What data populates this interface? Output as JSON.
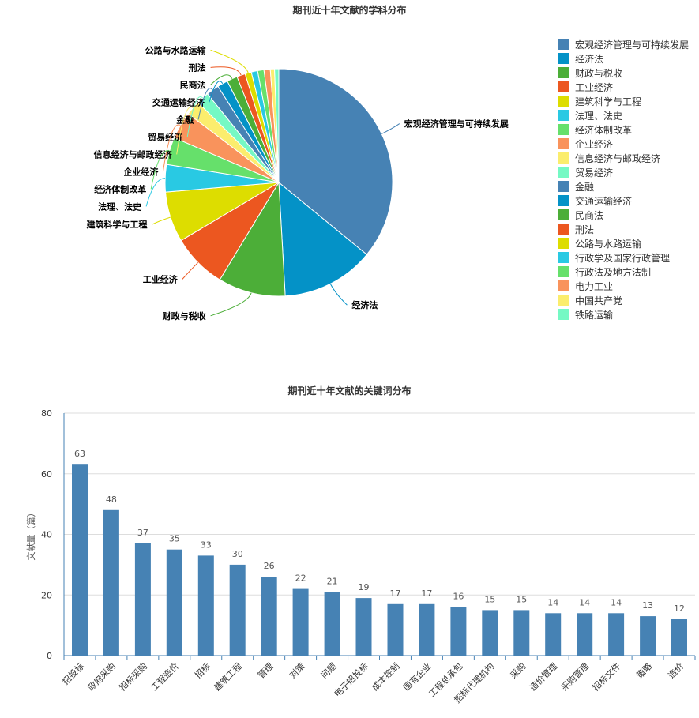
{
  "chart_data": [
    {
      "type": "pie",
      "title": "期刊近十年文献的学科分布",
      "legend_position": "right",
      "categories": [
        "宏观经济管理与可持续发展",
        "经济法",
        "财政与税收",
        "工业经济",
        "建筑科学与工程",
        "法理、法史",
        "经济体制改革",
        "企业经济",
        "信息经济与邮政经济",
        "贸易经济",
        "金融",
        "交通运输经济",
        "民商法",
        "刑法",
        "公路与水路运输",
        "行政学及国家行政管理",
        "行政法及地方法制",
        "电力工业",
        "中国共产党",
        "铁路运输"
      ],
      "values": [
        120,
        44,
        32,
        26,
        24,
        13,
        13,
        13,
        7,
        6,
        6,
        5,
        5,
        4,
        3,
        3,
        3,
        3,
        2,
        2
      ],
      "colors": [
        "#4682b4",
        "#0492c7",
        "#4cae38",
        "#ec5720",
        "#dddd00",
        "#29c9e3",
        "#66e06b",
        "#f9935c",
        "#fbed6d",
        "#75f9c4",
        "#4682b4",
        "#0492c7",
        "#4cae38",
        "#ec5720",
        "#dddd00",
        "#29c9e3",
        "#66e06b",
        "#f9935c",
        "#fbed6d",
        "#75f9c4"
      ],
      "labeled_categories": [
        "宏观经济管理与可持续发展",
        "经济法",
        "财政与税收",
        "工业经济",
        "建筑科学与工程",
        "法理、法史",
        "经济体制改革",
        "企业经济",
        "信息经济与邮政经济",
        "贸易经济",
        "金融",
        "交通运输经济",
        "民商法",
        "刑法",
        "公路与水路运输"
      ]
    },
    {
      "type": "bar",
      "title": "期刊近十年文献的关键词分布",
      "ylabel": "文献量（篇）",
      "ylim": [
        0,
        80
      ],
      "yticks": [
        0,
        20,
        40,
        60,
        80
      ],
      "grid": true,
      "bar_color": "#4682b4",
      "categories": [
        "招投标",
        "政府采购",
        "招标采购",
        "工程造价",
        "招标",
        "建筑工程",
        "管理",
        "对策",
        "问题",
        "电子招投标",
        "成本控制",
        "国有企业",
        "工程总承包",
        "招标代理机构",
        "采购",
        "造价管理",
        "采购管理",
        "招标文件",
        "策略",
        "造价"
      ],
      "values": [
        63,
        48,
        37,
        35,
        33,
        30,
        26,
        22,
        21,
        19,
        17,
        17,
        16,
        15,
        15,
        14,
        14,
        14,
        13,
        12
      ]
    }
  ]
}
